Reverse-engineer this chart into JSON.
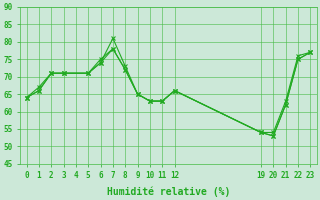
{
  "xlabel": "Humidité relative (%)",
  "bg_color": "#cce8d8",
  "grid_color": "#44bb44",
  "line_color": "#22aa22",
  "ylim": [
    45,
    90
  ],
  "xlim": [
    -0.5,
    23.5
  ],
  "yticks": [
    45,
    50,
    55,
    60,
    65,
    70,
    75,
    80,
    85,
    90
  ],
  "xtick_positions": [
    0,
    1,
    2,
    3,
    4,
    5,
    6,
    7,
    8,
    9,
    10,
    11,
    12,
    19,
    20,
    21,
    22,
    23
  ],
  "xtick_labels": [
    "0",
    "1",
    "2",
    "3",
    "4",
    "5",
    "6",
    "7",
    "8",
    "9",
    "10",
    "11",
    "12",
    "19",
    "20",
    "21",
    "22",
    "23"
  ],
  "lines": [
    {
      "x": [
        0,
        1,
        2,
        3,
        5,
        6,
        7,
        8,
        9,
        10,
        11,
        12,
        19,
        20,
        21,
        22,
        23
      ],
      "y": [
        64,
        67,
        71,
        71,
        71,
        74,
        81,
        73,
        65,
        63,
        63,
        66,
        54,
        54,
        63,
        76,
        77
      ],
      "marker": "x"
    },
    {
      "x": [
        0,
        1,
        2,
        3,
        5,
        6,
        7,
        8,
        9,
        10,
        11,
        12,
        19,
        20,
        21,
        22,
        23
      ],
      "y": [
        64,
        66,
        71,
        71,
        71,
        75,
        78,
        72,
        65,
        63,
        63,
        66,
        54,
        53,
        62,
        75,
        77
      ],
      "marker": "x"
    },
    {
      "x": [
        0,
        1,
        2,
        3,
        5,
        6,
        7,
        8,
        9,
        10,
        11,
        12,
        19,
        20,
        21,
        22,
        23
      ],
      "y": [
        64,
        66,
        71,
        71,
        71,
        74,
        78,
        72,
        65,
        63,
        63,
        66,
        54,
        53,
        62,
        75,
        77
      ],
      "marker": "x"
    }
  ]
}
